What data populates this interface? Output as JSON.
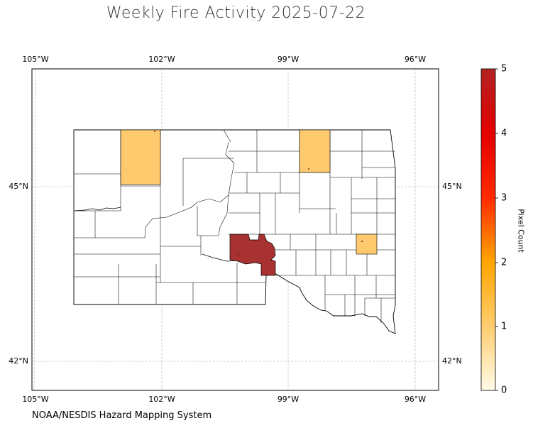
{
  "title": "Weekly Fire Activity 2025-07-22",
  "credit": "NOAA/NESDIS Hazard Mapping System",
  "axes": {
    "lon_ticks": [
      "105°W",
      "102°W",
      "99°W",
      "96°W"
    ],
    "lat_ticks": [
      "45°N",
      "42°N"
    ]
  },
  "colorbar": {
    "label": "Pixel Count",
    "ticks": [
      "0",
      "1",
      "2",
      "3",
      "4",
      "5"
    ],
    "range": [
      0,
      5
    ],
    "colors": [
      "#fffbe8",
      "#ffcd6e",
      "#ffa500",
      "#ff2a00",
      "#e40000",
      "#b22222"
    ]
  },
  "map": {
    "region": "South Dakota counties",
    "grid": true,
    "highlighted_counties": [
      {
        "name": "northwest county",
        "value": 1,
        "color": "#ffc96d"
      },
      {
        "name": "north-central county",
        "value": 1,
        "color": "#ffc96d"
      },
      {
        "name": "east-central county",
        "value": 1,
        "color": "#ffc96d"
      },
      {
        "name": "central county",
        "value": 5,
        "color": "#a52a2a"
      }
    ]
  }
}
